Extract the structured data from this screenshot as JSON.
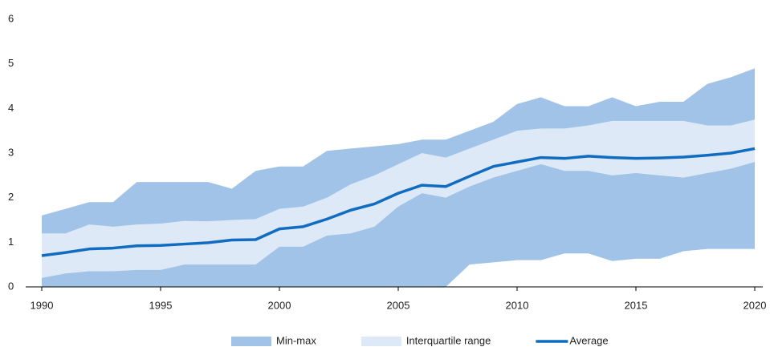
{
  "chart_data": {
    "type": "band",
    "x": [
      1990,
      1991,
      1992,
      1993,
      1994,
      1995,
      1996,
      1997,
      1998,
      1999,
      2000,
      2001,
      2002,
      2003,
      2004,
      2005,
      2006,
      2007,
      2008,
      2009,
      2010,
      2011,
      2012,
      2013,
      2014,
      2015,
      2016,
      2017,
      2018,
      2019,
      2020
    ],
    "xlim": [
      1990,
      2020
    ],
    "xticks": [
      1990,
      1995,
      2000,
      2005,
      2010,
      2015,
      2020
    ],
    "ylim": [
      0,
      6
    ],
    "yticks": [
      0,
      1,
      2,
      3,
      4,
      5,
      6
    ],
    "grid": false,
    "legend": "bottom",
    "series": [
      {
        "name": "Min-max",
        "color": "#a0c3e7",
        "low": [
          0,
          0,
          0,
          0,
          0,
          0,
          0,
          0,
          0,
          0,
          0,
          0,
          0,
          0,
          0,
          0,
          0,
          0,
          0.5,
          0.55,
          0.6,
          0.6,
          0.75,
          0.75,
          0.58,
          0.63,
          0.63,
          0.8,
          0.85,
          0.85,
          0.85
        ],
        "high": [
          1.6,
          1.75,
          1.9,
          1.9,
          2.35,
          2.35,
          2.35,
          2.35,
          2.2,
          2.6,
          2.7,
          2.7,
          3.05,
          3.1,
          3.15,
          3.2,
          3.3,
          3.3,
          3.5,
          3.7,
          4.1,
          4.25,
          4.05,
          4.05,
          4.25,
          4.05,
          4.15,
          4.15,
          4.55,
          4.7,
          4.9
        ]
      },
      {
        "name": "Interquartile range",
        "color": "#dde9f7",
        "low": [
          0.2,
          0.3,
          0.35,
          0.35,
          0.38,
          0.38,
          0.5,
          0.5,
          0.5,
          0.5,
          0.9,
          0.9,
          1.15,
          1.2,
          1.35,
          1.8,
          2.1,
          2.0,
          2.25,
          2.45,
          2.6,
          2.75,
          2.6,
          2.6,
          2.5,
          2.55,
          2.5,
          2.45,
          2.55,
          2.65,
          2.8
        ],
        "high": [
          1.2,
          1.2,
          1.4,
          1.35,
          1.4,
          1.42,
          1.48,
          1.47,
          1.5,
          1.52,
          1.75,
          1.8,
          2.0,
          2.3,
          2.5,
          2.75,
          3.0,
          2.9,
          3.1,
          3.3,
          3.5,
          3.55,
          3.55,
          3.62,
          3.72,
          3.72,
          3.72,
          3.72,
          3.62,
          3.62,
          3.75
        ]
      },
      {
        "name": "Average",
        "color": "#0f6cc0",
        "values": [
          0.7,
          0.77,
          0.85,
          0.87,
          0.92,
          0.93,
          0.96,
          0.99,
          1.05,
          1.06,
          1.3,
          1.35,
          1.52,
          1.72,
          1.86,
          2.1,
          2.28,
          2.25,
          2.48,
          2.7,
          2.8,
          2.9,
          2.88,
          2.93,
          2.9,
          2.88,
          2.89,
          2.91,
          2.95,
          3.0,
          3.1
        ]
      }
    ]
  }
}
